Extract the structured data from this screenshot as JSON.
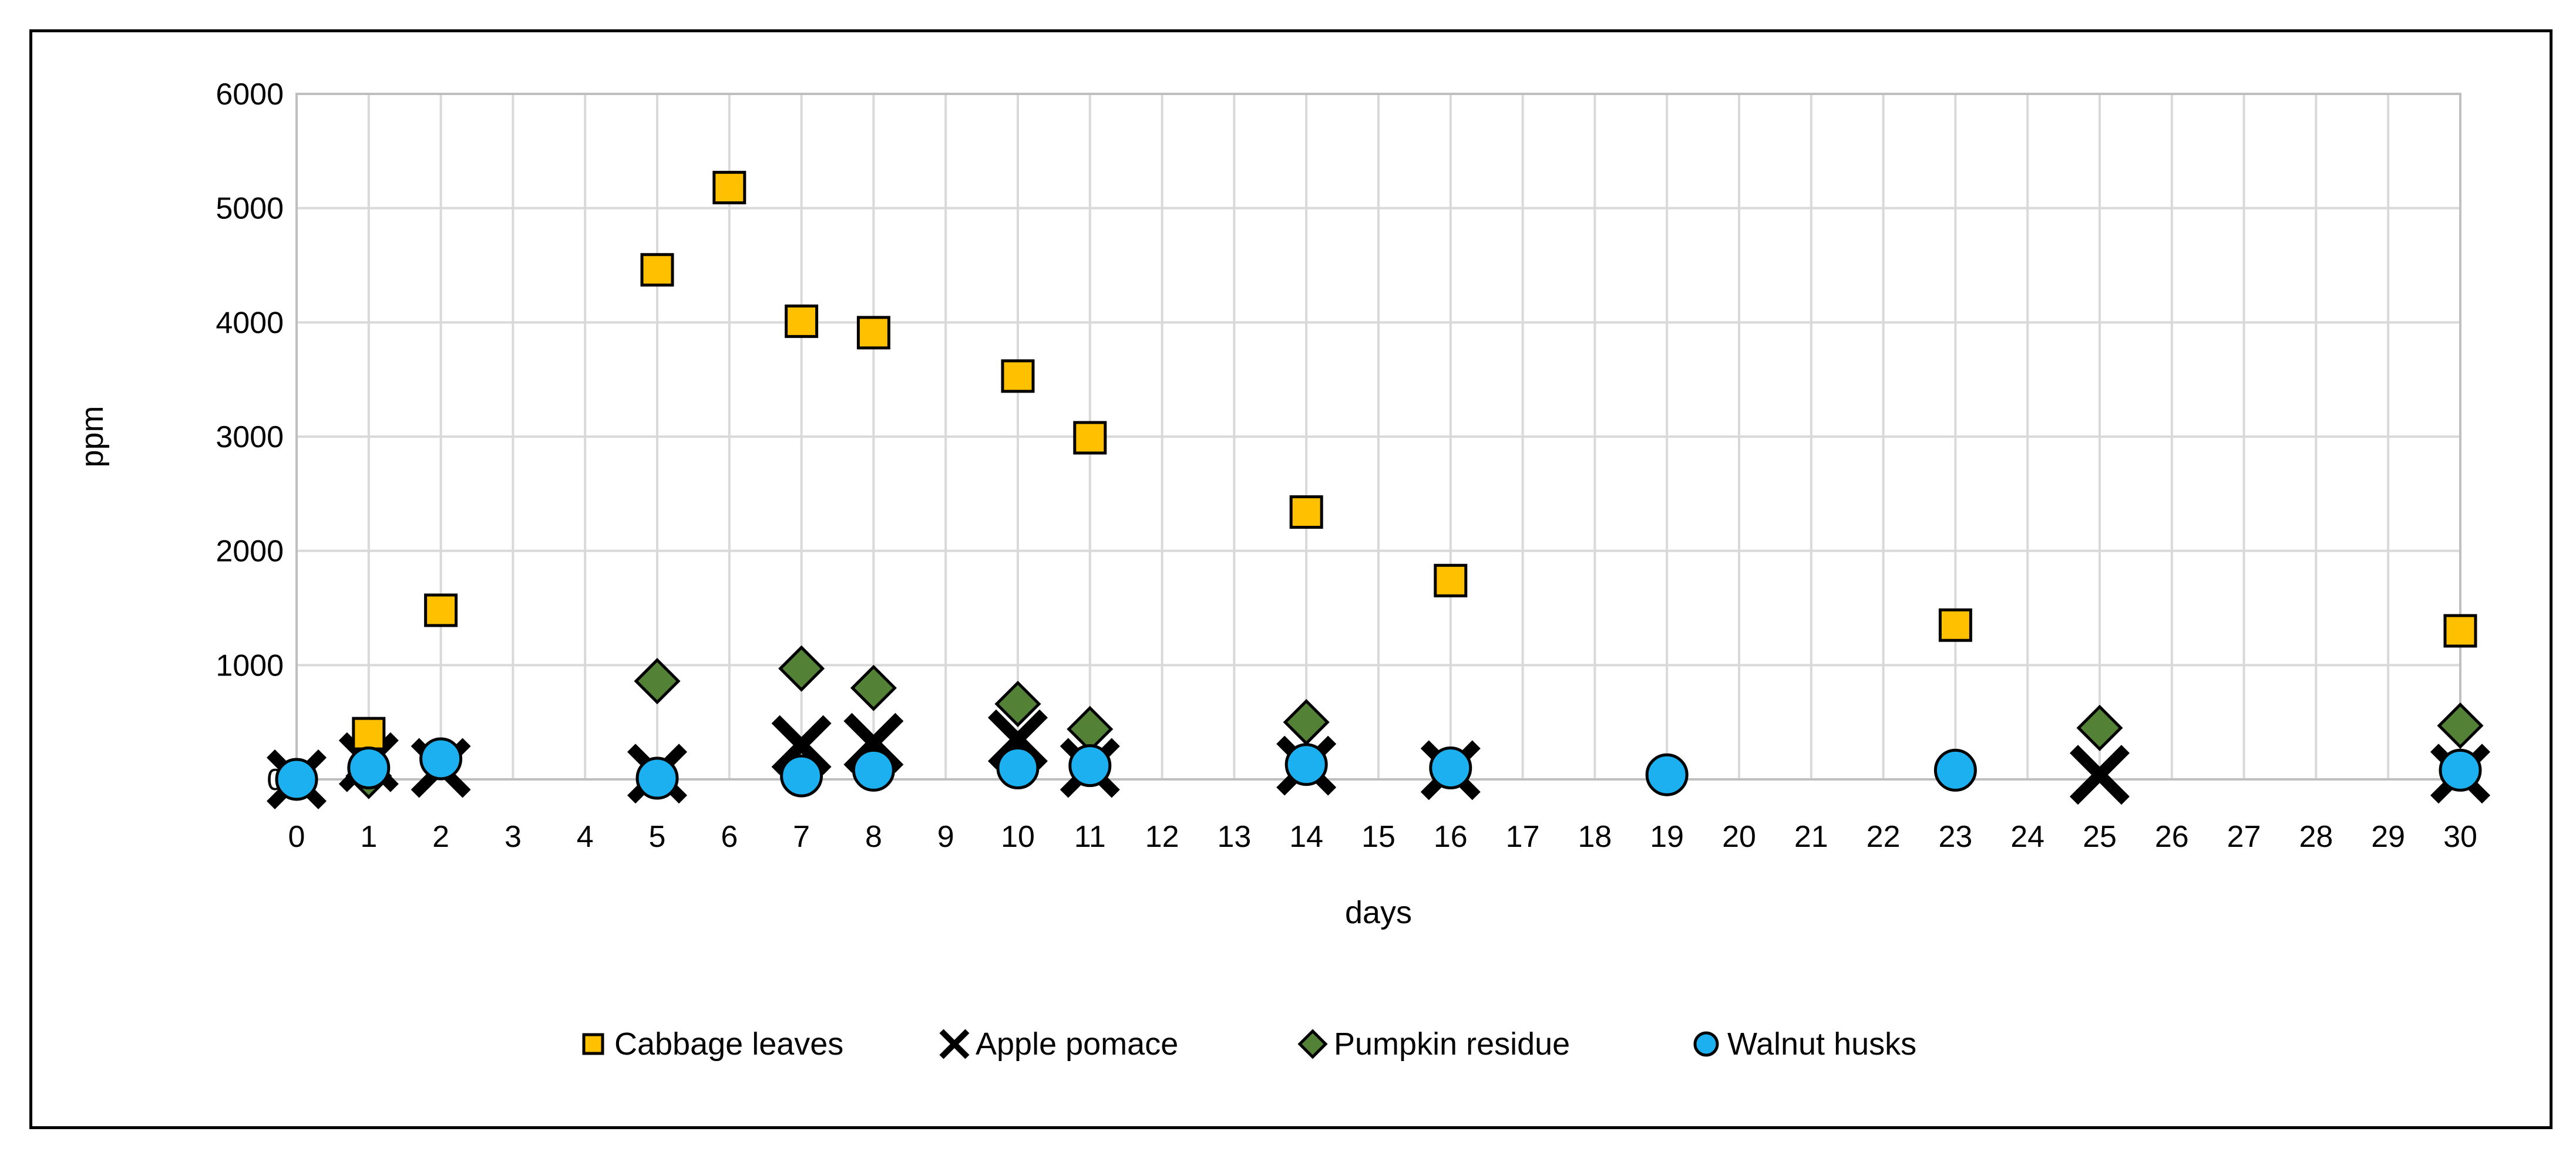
{
  "chart_data": {
    "type": "scatter",
    "title": "",
    "xlabel": "days",
    "ylabel": "ppm",
    "xlim": [
      0,
      30
    ],
    "ylim": [
      0,
      6000
    ],
    "categories": [
      "0",
      "1",
      "2",
      "3",
      "4",
      "5",
      "6",
      "7",
      "8",
      "9",
      "10",
      "11",
      "12",
      "13",
      "14",
      "15",
      "16",
      "17",
      "18",
      "19",
      "20",
      "21",
      "22",
      "23",
      "24",
      "25",
      "26",
      "27",
      "28",
      "29",
      "30"
    ],
    "y_ticks": [
      "0",
      "1000",
      "2000",
      "3000",
      "4000",
      "5000",
      "6000"
    ],
    "grid": true,
    "legend_position": "bottom",
    "series": [
      {
        "name": "Cabbage leaves",
        "marker": "square",
        "color": "#FFC000",
        "x": [
          1,
          2,
          5,
          6,
          7,
          8,
          10,
          11,
          14,
          16,
          23,
          30
        ],
        "y": [
          400,
          1480,
          4460,
          5180,
          4010,
          3910,
          3530,
          2990,
          2340,
          1740,
          1350,
          1300
        ]
      },
      {
        "name": "Apple pomace",
        "marker": "x",
        "color": "#000000",
        "x": [
          0,
          1,
          2,
          5,
          7,
          8,
          10,
          11,
          14,
          16,
          25,
          30
        ],
        "y": [
          0,
          150,
          100,
          50,
          300,
          320,
          350,
          100,
          120,
          80,
          40,
          50
        ]
      },
      {
        "name": "Pumpkin residue",
        "marker": "diamond",
        "color": "#538135",
        "x": [
          1,
          5,
          7,
          8,
          10,
          11,
          14,
          25,
          30
        ],
        "y": [
          30,
          860,
          970,
          800,
          660,
          440,
          500,
          450,
          470
        ]
      },
      {
        "name": "Walnut husks",
        "marker": "circle",
        "color": "#1CB0F0",
        "x": [
          0,
          1,
          2,
          5,
          7,
          8,
          10,
          11,
          14,
          16,
          19,
          23,
          30
        ],
        "y": [
          0,
          100,
          180,
          10,
          30,
          80,
          100,
          120,
          130,
          100,
          40,
          80,
          80
        ]
      }
    ]
  }
}
